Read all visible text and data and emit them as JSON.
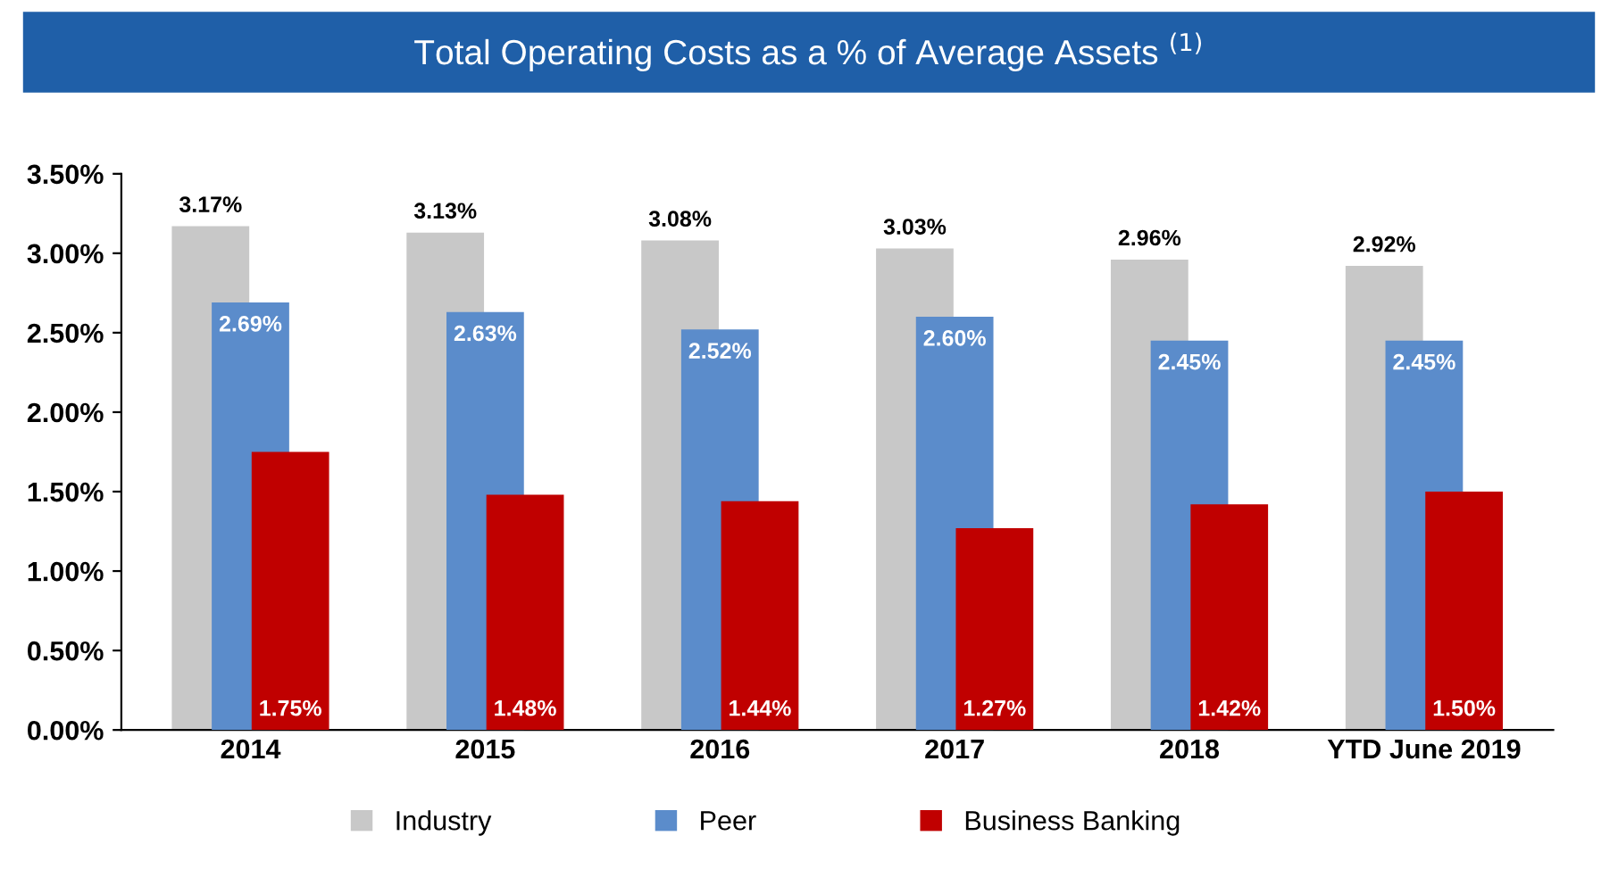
{
  "chart_data": {
    "type": "bar",
    "title": "Total Operating Costs as a % of Average Assets $^{(1)}$",
    "categories": [
      "2014",
      "2015",
      "2016",
      "2017",
      "2018",
      "YTD June 2019"
    ],
    "series": [
      {
        "name": "Industry",
        "color": "#c8c8c8",
        "values": [
          3.17,
          3.13,
          3.08,
          3.03,
          2.96,
          2.92
        ],
        "value_labels": [
          "3.17%",
          "3.13%",
          "3.08%",
          "3.03%",
          "2.96%",
          "2.92%"
        ]
      },
      {
        "name": "Peer",
        "color": "#5b8ccb",
        "values": [
          2.69,
          2.63,
          2.52,
          2.6,
          2.45,
          2.45
        ],
        "value_labels": [
          "2.69%",
          "2.63%",
          "2.52%",
          "2.60%",
          "2.45%",
          "2.45%"
        ]
      },
      {
        "name": "Business Banking",
        "color": "#c00000",
        "values": [
          1.75,
          1.48,
          1.44,
          1.27,
          1.42,
          1.5
        ],
        "value_labels": [
          "1.75%",
          "1.48%",
          "1.44%",
          "1.27%",
          "1.42%",
          "1.50%"
        ]
      }
    ],
    "ylim": [
      0,
      3.5
    ],
    "yticks": [
      {
        "value": 0,
        "label": "0.00%"
      },
      {
        "value": 0.5,
        "label": "0.50%"
      },
      {
        "value": 1.0,
        "label": "1.00%"
      },
      {
        "value": 1.5,
        "label": "1.50%"
      },
      {
        "value": 2.0,
        "label": "2.00%"
      },
      {
        "value": 2.5,
        "label": "2.50%"
      },
      {
        "value": 3.0,
        "label": "3.00%"
      },
      {
        "value": 3.5,
        "label": "3.50%"
      }
    ],
    "grid": false,
    "legend": "bottom"
  }
}
